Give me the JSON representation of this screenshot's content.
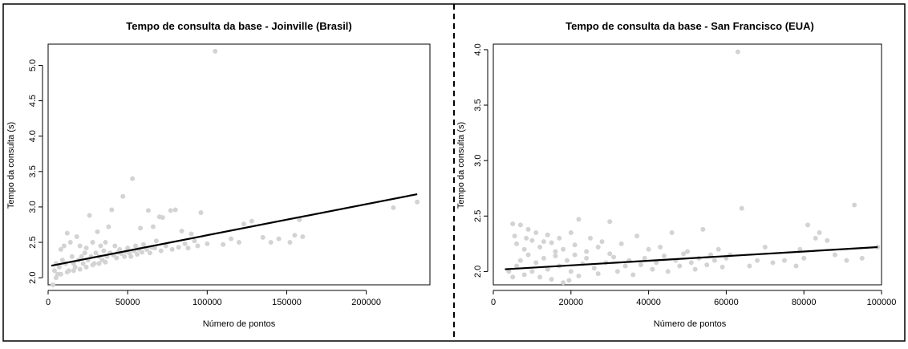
{
  "chart_data": [
    {
      "type": "scatter",
      "title": "Tempo de consulta da base - Joinville (Brasil)",
      "xlabel": "Número de pontos",
      "ylabel": "Tempo da consulta (s)",
      "xlim": [
        0,
        240000
      ],
      "ylim": [
        1.9,
        5.3
      ],
      "xticks": [
        0,
        50000,
        100000,
        150000,
        200000
      ],
      "yticks": [
        2.0,
        2.5,
        3.0,
        3.5,
        4.0,
        4.5,
        5.0
      ],
      "xtick_labels": [
        "0",
        "50000",
        "100000",
        "150000",
        "200000"
      ],
      "ytick_labels": [
        "2.0",
        "2.5",
        "3.0",
        "3.5",
        "4.0",
        "4.5",
        "5.0"
      ],
      "point_color": "#d3d3d3",
      "line_color": "#000000",
      "trend_line": {
        "x": [
          2000,
          232000
        ],
        "y": [
          2.17,
          3.18
        ]
      },
      "points": [
        [
          105000,
          5.2
        ],
        [
          53000,
          3.4
        ],
        [
          47000,
          3.15
        ],
        [
          40000,
          2.96
        ],
        [
          26000,
          2.88
        ],
        [
          63000,
          2.95
        ],
        [
          77000,
          2.95
        ],
        [
          80000,
          2.96
        ],
        [
          96000,
          2.92
        ],
        [
          158000,
          2.82
        ],
        [
          217000,
          2.99
        ],
        [
          232000,
          3.07
        ],
        [
          155000,
          2.6
        ],
        [
          128000,
          2.8
        ],
        [
          123000,
          2.76
        ],
        [
          70000,
          2.86
        ],
        [
          72000,
          2.85
        ],
        [
          66000,
          2.72
        ],
        [
          84000,
          2.66
        ],
        [
          90000,
          2.62
        ],
        [
          38000,
          2.72
        ],
        [
          12000,
          2.63
        ],
        [
          18000,
          2.58
        ],
        [
          31000,
          2.65
        ],
        [
          58000,
          2.7
        ],
        [
          110000,
          2.47
        ],
        [
          115000,
          2.55
        ],
        [
          120000,
          2.5
        ],
        [
          140000,
          2.5
        ],
        [
          145000,
          2.55
        ],
        [
          152000,
          2.5
        ],
        [
          160000,
          2.58
        ],
        [
          135000,
          2.57
        ],
        [
          100000,
          2.48
        ],
        [
          92000,
          2.52
        ],
        [
          8000,
          2.4
        ],
        [
          10000,
          2.45
        ],
        [
          14000,
          2.5
        ],
        [
          20000,
          2.45
        ],
        [
          24000,
          2.42
        ],
        [
          28000,
          2.5
        ],
        [
          33000,
          2.45
        ],
        [
          36000,
          2.5
        ],
        [
          42000,
          2.45
        ],
        [
          45000,
          2.4
        ],
        [
          50000,
          2.42
        ],
        [
          55000,
          2.45
        ],
        [
          60000,
          2.47
        ],
        [
          65000,
          2.43
        ],
        [
          68000,
          2.52
        ],
        [
          4000,
          2.1
        ],
        [
          5000,
          2.2
        ],
        [
          6000,
          2.05
        ],
        [
          7000,
          2.15
        ],
        [
          9000,
          2.25
        ],
        [
          11000,
          2.2
        ],
        [
          13000,
          2.1
        ],
        [
          15000,
          2.3
        ],
        [
          16000,
          2.2
        ],
        [
          17000,
          2.15
        ],
        [
          19000,
          2.25
        ],
        [
          21000,
          2.3
        ],
        [
          22000,
          2.2
        ],
        [
          23000,
          2.35
        ],
        [
          25000,
          2.25
        ],
        [
          27000,
          2.3
        ],
        [
          29000,
          2.2
        ],
        [
          30000,
          2.35
        ],
        [
          32000,
          2.3
        ],
        [
          34000,
          2.25
        ],
        [
          35000,
          2.38
        ],
        [
          37000,
          2.3
        ],
        [
          39000,
          2.35
        ],
        [
          41000,
          2.32
        ],
        [
          43000,
          2.28
        ],
        [
          44000,
          2.36
        ],
        [
          46000,
          2.34
        ],
        [
          48000,
          2.3
        ],
        [
          49000,
          2.37
        ],
        [
          51000,
          2.35
        ],
        [
          52000,
          2.3
        ],
        [
          54000,
          2.38
        ],
        [
          56000,
          2.33
        ],
        [
          57000,
          2.4
        ],
        [
          59000,
          2.36
        ],
        [
          3000,
          1.9
        ],
        [
          5000,
          2.0
        ],
        [
          8000,
          2.05
        ],
        [
          12000,
          2.08
        ],
        [
          16000,
          2.1
        ],
        [
          20000,
          2.12
        ],
        [
          24000,
          2.15
        ],
        [
          28000,
          2.18
        ],
        [
          32000,
          2.2
        ],
        [
          36000,
          2.22
        ],
        [
          62000,
          2.4
        ],
        [
          64000,
          2.35
        ],
        [
          67000,
          2.42
        ],
        [
          71000,
          2.38
        ],
        [
          74000,
          2.45
        ],
        [
          78000,
          2.4
        ],
        [
          82000,
          2.43
        ],
        [
          86000,
          2.48
        ],
        [
          88000,
          2.42
        ],
        [
          94000,
          2.45
        ]
      ]
    },
    {
      "type": "scatter",
      "title": "Tempo de consulta da base - San Francisco (EUA)",
      "xlabel": "Número de pontos",
      "ylabel": "Tempo da consulta (s)",
      "xlim": [
        0,
        100000
      ],
      "ylim": [
        1.88,
        4.05
      ],
      "xticks": [
        0,
        20000,
        40000,
        60000,
        80000,
        100000
      ],
      "yticks": [
        2.0,
        2.5,
        3.0,
        3.5,
        4.0
      ],
      "xtick_labels": [
        "0",
        "20000",
        "40000",
        "60000",
        "80000",
        "100000"
      ],
      "ytick_labels": [
        "2.0",
        "2.5",
        "3.0",
        "3.5",
        "4.0"
      ],
      "point_color": "#d3d3d3",
      "line_color": "#000000",
      "trend_line": {
        "x": [
          3000,
          99000
        ],
        "y": [
          2.02,
          2.22
        ]
      },
      "points": [
        [
          63000,
          3.98
        ],
        [
          93000,
          2.6
        ],
        [
          64000,
          2.57
        ],
        [
          81000,
          2.42
        ],
        [
          84000,
          2.35
        ],
        [
          99000,
          2.22
        ],
        [
          70000,
          2.22
        ],
        [
          79000,
          2.2
        ],
        [
          83000,
          2.3
        ],
        [
          86000,
          2.28
        ],
        [
          54000,
          2.38
        ],
        [
          22000,
          2.47
        ],
        [
          30000,
          2.45
        ],
        [
          46000,
          2.35
        ],
        [
          37000,
          2.32
        ],
        [
          5000,
          2.43
        ],
        [
          7000,
          2.42
        ],
        [
          9000,
          2.38
        ],
        [
          11000,
          2.35
        ],
        [
          14000,
          2.33
        ],
        [
          17000,
          2.3
        ],
        [
          20000,
          2.35
        ],
        [
          25000,
          2.3
        ],
        [
          28000,
          2.27
        ],
        [
          33000,
          2.25
        ],
        [
          40000,
          2.2
        ],
        [
          43000,
          2.22
        ],
        [
          50000,
          2.18
        ],
        [
          56000,
          2.15
        ],
        [
          58000,
          2.2
        ],
        [
          60000,
          2.12
        ],
        [
          66000,
          2.05
        ],
        [
          68000,
          2.1
        ],
        [
          72000,
          2.08
        ],
        [
          75000,
          2.1
        ],
        [
          78000,
          2.05
        ],
        [
          80000,
          2.12
        ],
        [
          88000,
          2.15
        ],
        [
          91000,
          2.1
        ],
        [
          95000,
          2.12
        ],
        [
          4000,
          2.0
        ],
        [
          5000,
          1.95
        ],
        [
          6000,
          2.05
        ],
        [
          7000,
          2.1
        ],
        [
          8000,
          1.97
        ],
        [
          9000,
          2.15
        ],
        [
          10000,
          2.0
        ],
        [
          11000,
          2.08
        ],
        [
          12000,
          1.95
        ],
        [
          13000,
          2.12
        ],
        [
          14000,
          2.02
        ],
        [
          15000,
          1.93
        ],
        [
          16000,
          2.18
        ],
        [
          17000,
          2.05
        ],
        [
          18000,
          1.9
        ],
        [
          19000,
          2.1
        ],
        [
          20000,
          2.0
        ],
        [
          21000,
          2.15
        ],
        [
          22000,
          1.96
        ],
        [
          23000,
          2.07
        ],
        [
          24000,
          2.12
        ],
        [
          26000,
          2.03
        ],
        [
          27000,
          1.98
        ],
        [
          29000,
          2.08
        ],
        [
          31000,
          2.13
        ],
        [
          32000,
          2.0
        ],
        [
          34000,
          2.05
        ],
        [
          35000,
          2.1
        ],
        [
          36000,
          1.97
        ],
        [
          38000,
          2.06
        ],
        [
          39000,
          2.12
        ],
        [
          41000,
          2.02
        ],
        [
          42000,
          2.08
        ],
        [
          44000,
          2.14
        ],
        [
          45000,
          2.0
        ],
        [
          47000,
          2.1
        ],
        [
          48000,
          2.05
        ],
        [
          49000,
          2.16
        ],
        [
          51000,
          2.08
        ],
        [
          52000,
          2.02
        ],
        [
          53000,
          2.12
        ],
        [
          55000,
          2.06
        ],
        [
          57000,
          2.1
        ],
        [
          59000,
          2.04
        ],
        [
          61000,
          2.15
        ],
        [
          6000,
          2.25
        ],
        [
          8000,
          2.2
        ],
        [
          10000,
          2.28
        ],
        [
          12000,
          2.22
        ],
        [
          15000,
          2.26
        ],
        [
          18000,
          2.2
        ],
        [
          21000,
          2.24
        ],
        [
          24000,
          2.18
        ],
        [
          27000,
          2.22
        ],
        [
          30000,
          2.16
        ],
        [
          5500,
          2.32
        ],
        [
          8500,
          2.3
        ],
        [
          13000,
          2.27
        ],
        [
          16000,
          2.14
        ],
        [
          19500,
          1.92
        ]
      ]
    }
  ]
}
